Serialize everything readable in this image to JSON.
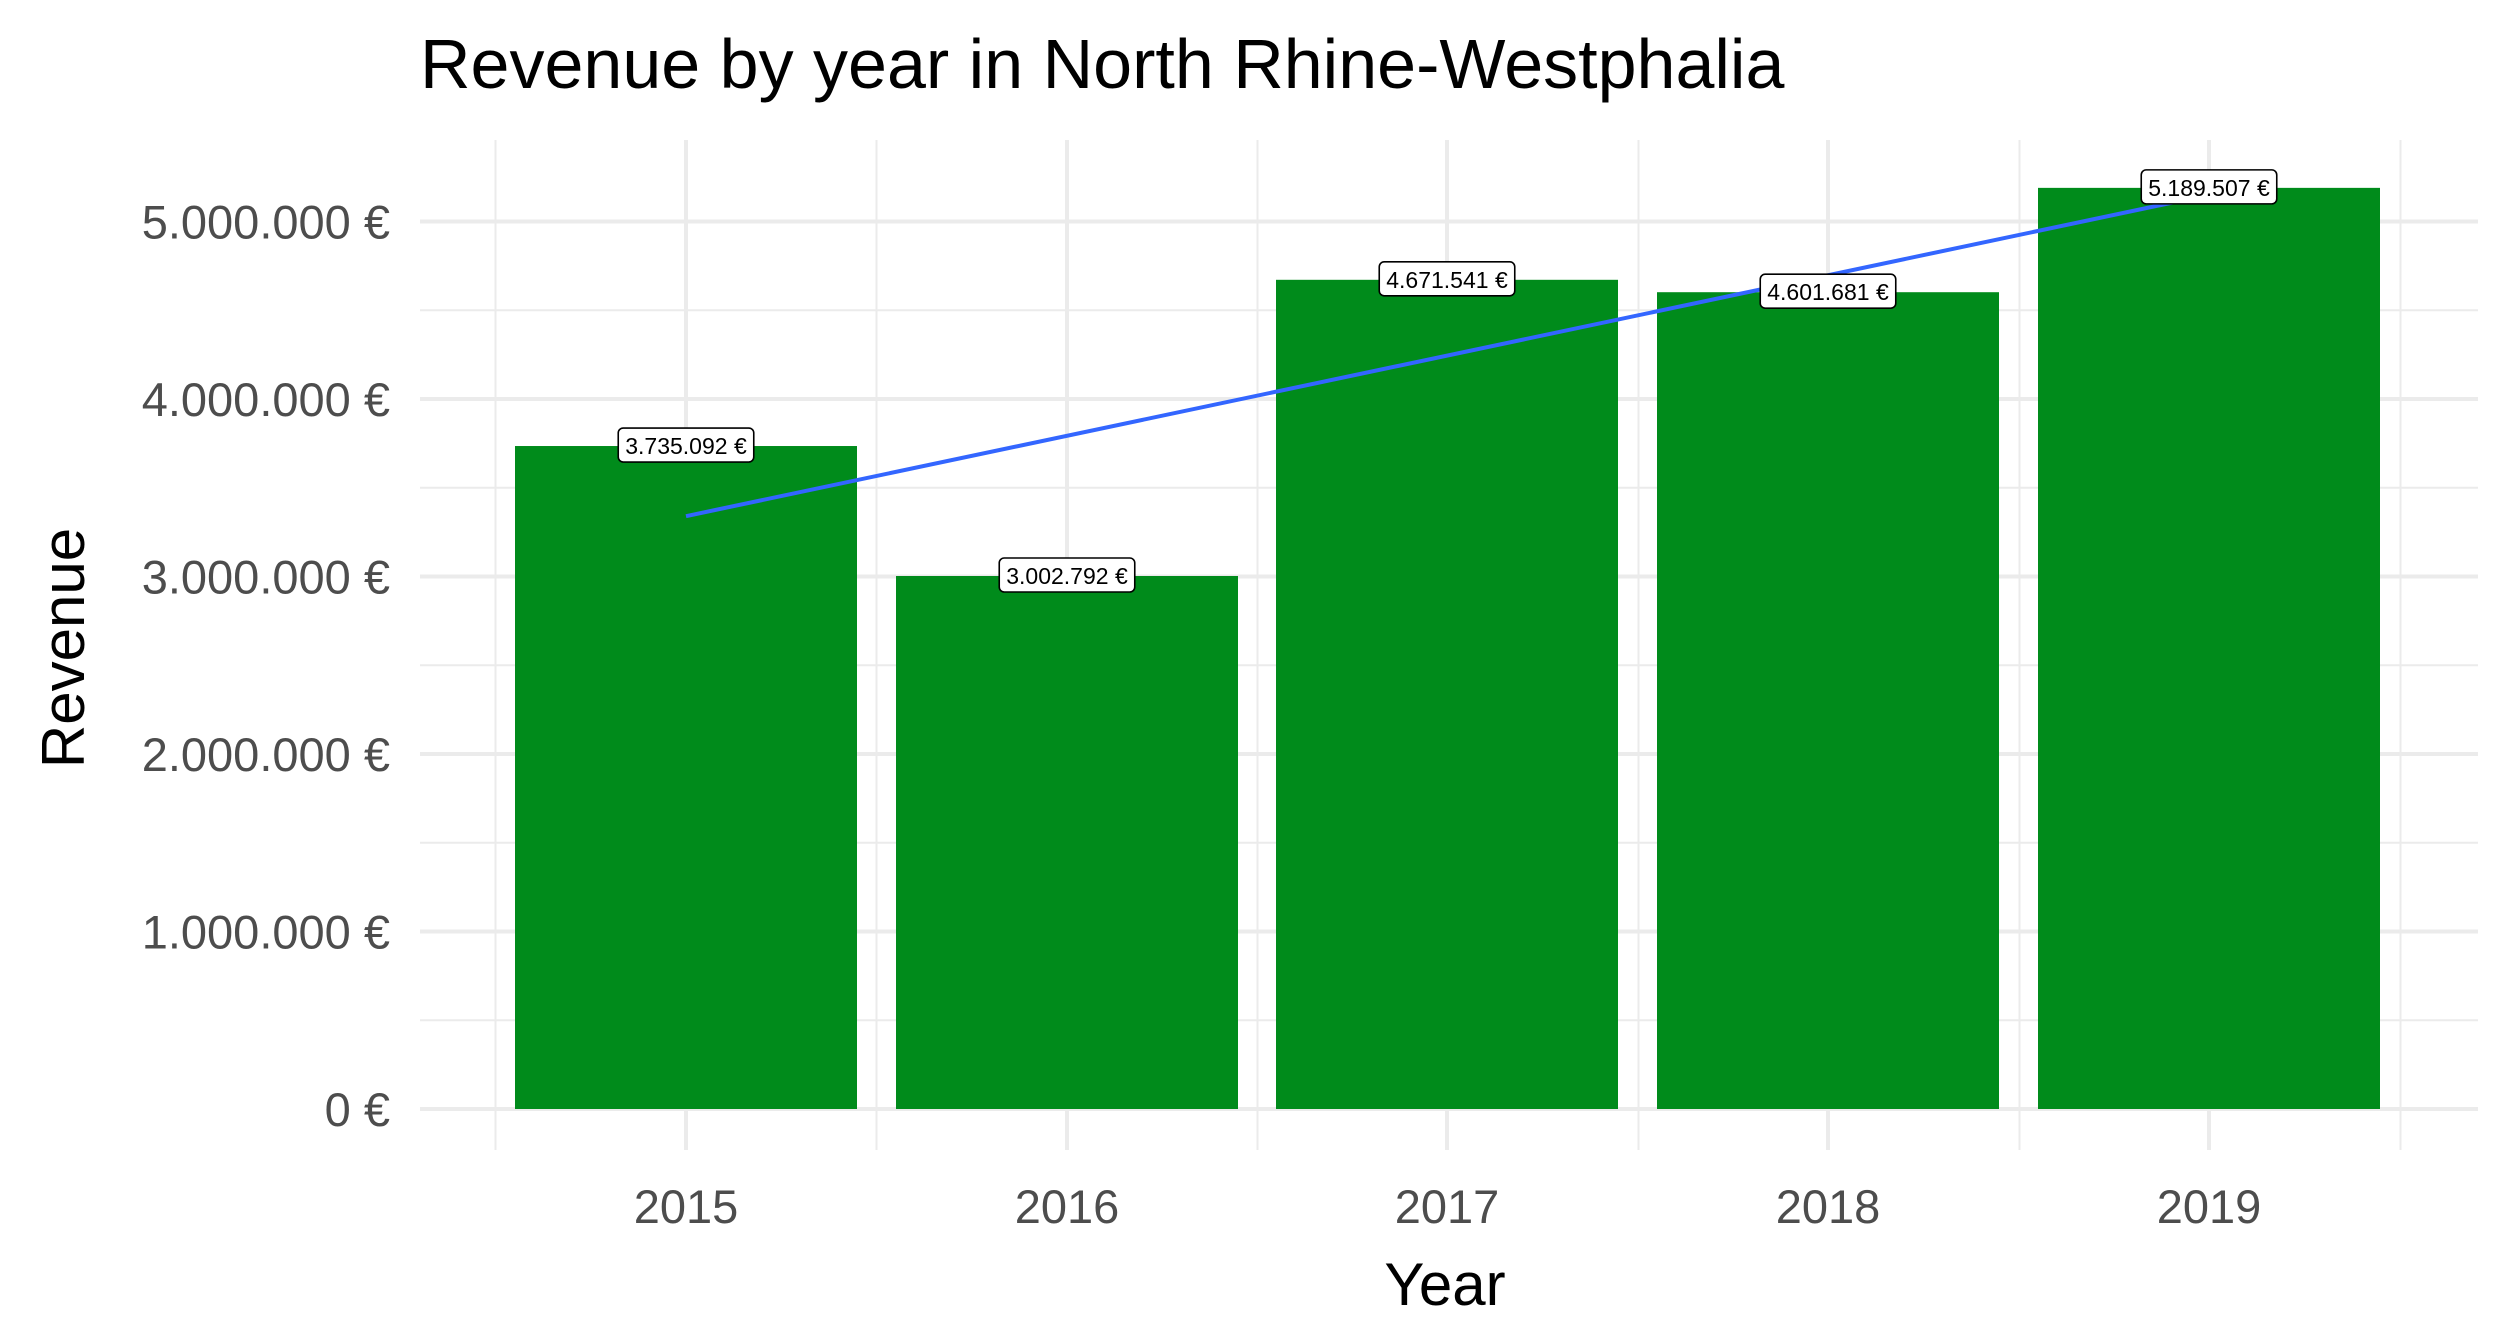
{
  "chart_data": {
    "type": "bar",
    "title": "Revenue by year in North Rhine-Westphalia",
    "xlabel": "Year",
    "ylabel": "Revenue",
    "categories": [
      "2015",
      "2016",
      "2017",
      "2018",
      "2019"
    ],
    "values": [
      3735092,
      3002792,
      4671541,
      4601681,
      5189507
    ],
    "data_labels": [
      "3.735.092 €",
      "3.002.792 €",
      "4.671.541 €",
      "4.601.681 €",
      "5.189.507 €"
    ],
    "y_ticks": [
      0,
      1000000,
      2000000,
      3000000,
      4000000,
      5000000
    ],
    "y_tick_labels": [
      "0 €",
      "1.000.000 €",
      "2.000.000 €",
      "3.000.000 €",
      "4.000.000 €",
      "5.000.000 €"
    ],
    "ylim": [
      0,
      5450000
    ],
    "trend_line": {
      "type": "linear",
      "start": {
        "x": "2015",
        "y": 3340000
      },
      "end": {
        "x": "2019",
        "y": 5150000
      }
    },
    "grid": true,
    "legend": "none",
    "colors": {
      "bar": "#008B1B",
      "trend": "#3366FF",
      "grid": "#EBEBEB",
      "tick_text": "#4D4D4D"
    }
  }
}
